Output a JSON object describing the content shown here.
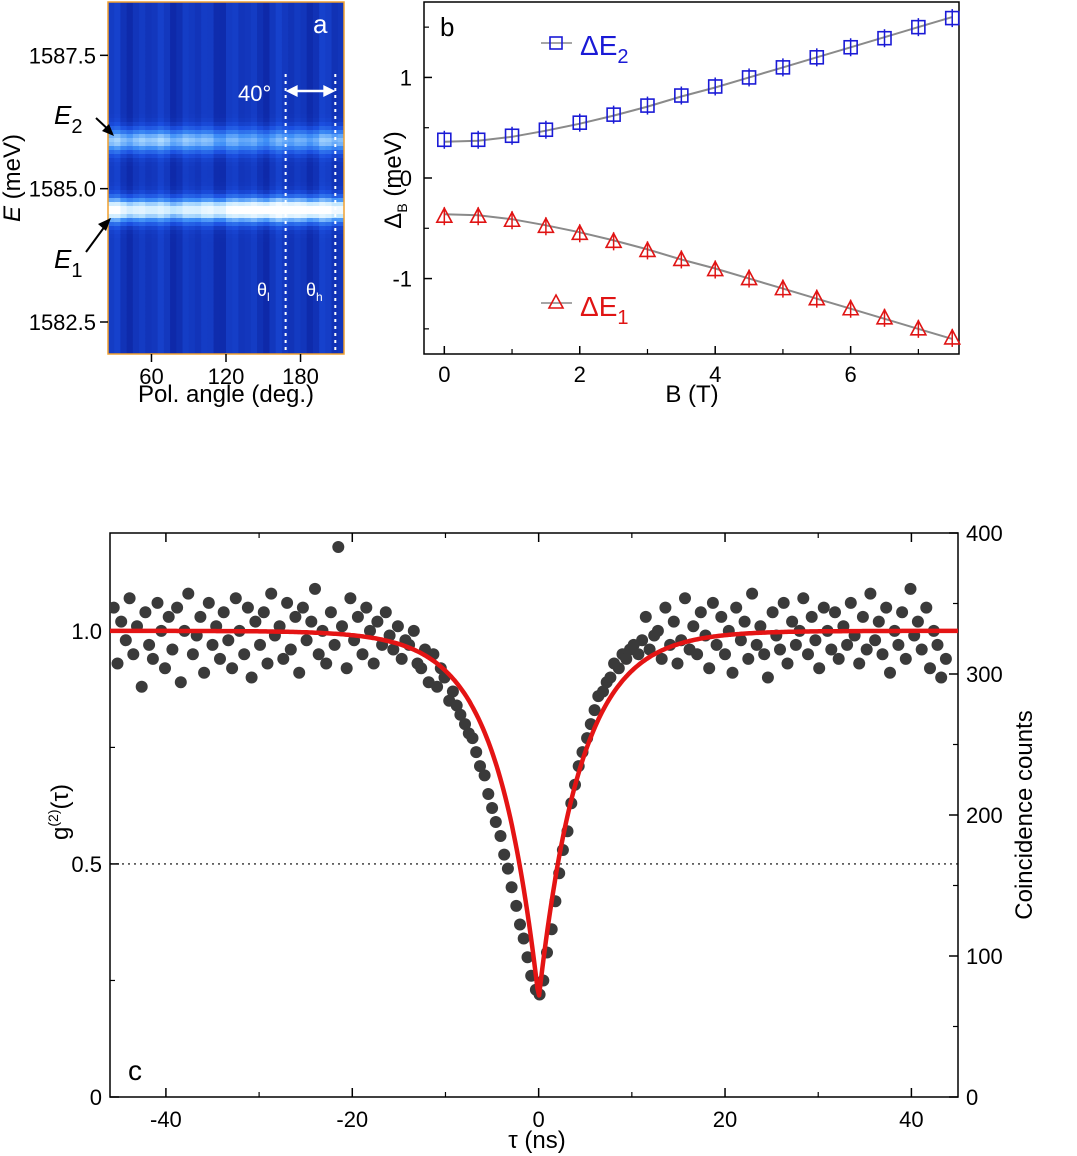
{
  "chart_data": [
    {
      "panel": "a",
      "type": "heatmap",
      "panel_label": "a",
      "xlabel": "Pol. angle (deg.)",
      "ylabel": "E (meV)",
      "ylabel_italic_part": "E",
      "ylabel_rest": " (meV)",
      "x_ticks": [
        60,
        120,
        180
      ],
      "y_ticks": [
        "1587.5",
        "1585.0",
        "1582.5"
      ],
      "xlim": [
        25,
        215
      ],
      "ylim": [
        1581.9,
        1588.5
      ],
      "colormap": [
        "#0a1f9a",
        "#1b4fe0",
        "#3f8ff7",
        "#bfe6ff",
        "#ffffff"
      ],
      "bands": [
        {
          "name": "E1",
          "energy": 1584.6,
          "peak_angle": 165,
          "peak_intensity": 1.0,
          "min_intensity": 0.72
        },
        {
          "name": "E2",
          "energy": 1585.9,
          "peak_angle": 60,
          "peak_intensity": 0.55,
          "min_intensity": 0.45
        }
      ],
      "annotations": {
        "e2_label": "E",
        "e2_sub": "2",
        "e1_label": "E",
        "e1_sub": "1",
        "angle_span": "40°",
        "theta_l": "θ",
        "theta_l_sub": "l",
        "theta_h": "θ",
        "theta_h_sub": "h",
        "theta_l_angle": 168,
        "theta_h_angle": 208
      }
    },
    {
      "panel": "b",
      "type": "scatter",
      "panel_label": "b",
      "xlabel": "B (T)",
      "ylabel_main": "Δ",
      "ylabel_sub": "B",
      "ylabel_rest": " (meV)",
      "xlim": [
        -0.3,
        7.6
      ],
      "ylim": [
        -1.75,
        1.75
      ],
      "x_ticks": [
        0,
        2,
        4,
        6
      ],
      "y_ticks": [
        -1,
        0,
        1
      ],
      "y_tick_labels": [
        "-1",
        "0",
        "1"
      ],
      "series": [
        {
          "name": "ΔE2",
          "legend_main": "ΔE",
          "legend_sub": "2",
          "marker": "square",
          "color": "#1a1ad6",
          "x": [
            0,
            0.5,
            1,
            1.5,
            2,
            2.5,
            3,
            3.5,
            4,
            4.5,
            5,
            5.5,
            6,
            6.5,
            7,
            7.5
          ],
          "y": [
            0.38,
            0.38,
            0.42,
            0.48,
            0.55,
            0.63,
            0.72,
            0.82,
            0.91,
            1.0,
            1.1,
            1.2,
            1.3,
            1.39,
            1.5,
            1.59
          ],
          "fit": [
            0.36,
            0.37,
            0.41,
            0.47,
            0.54,
            0.62,
            0.71,
            0.81,
            0.9,
            1.0,
            1.1,
            1.2,
            1.3,
            1.4,
            1.5,
            1.6
          ]
        },
        {
          "name": "ΔE1",
          "legend_main": "ΔE",
          "legend_sub": "1",
          "marker": "triangle",
          "color": "#e01414",
          "x": [
            0,
            0.5,
            1,
            1.5,
            2,
            2.5,
            3,
            3.5,
            4,
            4.5,
            5,
            5.5,
            6,
            6.5,
            7,
            7.5
          ],
          "y": [
            -0.38,
            -0.38,
            -0.42,
            -0.48,
            -0.55,
            -0.63,
            -0.72,
            -0.81,
            -0.91,
            -1.0,
            -1.1,
            -1.2,
            -1.3,
            -1.39,
            -1.5,
            -1.59
          ],
          "fit": [
            -0.36,
            -0.37,
            -0.41,
            -0.47,
            -0.54,
            -0.62,
            -0.71,
            -0.81,
            -0.9,
            -1.0,
            -1.1,
            -1.2,
            -1.3,
            -1.4,
            -1.5,
            -1.6
          ]
        }
      ]
    },
    {
      "panel": "c",
      "type": "scatter",
      "panel_label": "c",
      "xlabel": "τ (ns)",
      "ylabel_left_main": "g",
      "ylabel_left_sup": "(2)",
      "ylabel_left_rest": "(τ)",
      "ylabel_right": "Coincidence counts",
      "xlim": [
        -46,
        45
      ],
      "ylim_left": [
        0,
        1.21
      ],
      "ylim_right": [
        0,
        400
      ],
      "x_ticks": [
        -40,
        -20,
        0,
        20,
        40
      ],
      "y_ticks_left": [
        0,
        0.5,
        1.0
      ],
      "y_tick_labels_left": [
        "0",
        "0.5",
        "1.0"
      ],
      "y_ticks_right": [
        0,
        100,
        200,
        300,
        400
      ],
      "reference_line": 0.5,
      "fit": {
        "type": "two-sided exponential dip",
        "baseline": 1.0,
        "dip_value": 0.21,
        "tau_ns": 4.5,
        "color": "#e41414"
      },
      "scatter_color": "#3a3a3a",
      "points_x": [
        -45.6,
        -45.2,
        -44.8,
        -44.3,
        -43.9,
        -43.5,
        -43.1,
        -42.6,
        -42.2,
        -41.8,
        -41.4,
        -40.9,
        -40.5,
        -40.1,
        -39.7,
        -39.3,
        -38.8,
        -38.4,
        -38.0,
        -37.6,
        -37.1,
        -36.7,
        -36.3,
        -35.9,
        -35.4,
        -35.0,
        -34.6,
        -34.2,
        -33.8,
        -33.3,
        -32.9,
        -32.5,
        -32.1,
        -31.6,
        -31.2,
        -30.8,
        -30.4,
        -29.9,
        -29.5,
        -29.1,
        -28.7,
        -28.3,
        -27.8,
        -27.4,
        -27.0,
        -26.6,
        -26.1,
        -25.7,
        -25.3,
        -24.9,
        -24.4,
        -24.0,
        -23.6,
        -23.2,
        -22.8,
        -22.3,
        -21.9,
        -21.5,
        -21.1,
        -20.6,
        -20.2,
        -19.8,
        -19.4,
        -18.9,
        -18.5,
        -18.1,
        -17.7,
        -17.3,
        -16.8,
        -16.4,
        -16.0,
        -15.6,
        -15.1,
        -14.7,
        -14.3,
        -13.9,
        -13.4,
        -13.0,
        -12.6,
        -12.2,
        -11.8,
        -11.3,
        -10.9,
        -10.5,
        -10.1,
        -9.6,
        -9.2,
        -8.8,
        -8.4,
        -7.9,
        -7.5,
        -7.1,
        -6.7,
        -6.3,
        -5.8,
        -5.4,
        -5.0,
        -4.6,
        -4.1,
        -3.7,
        -3.3,
        -2.9,
        -2.4,
        -2.0,
        -1.6,
        -1.2,
        -0.8,
        -0.3,
        0.1,
        0.5,
        0.9,
        1.4,
        1.8,
        2.2,
        2.6,
        3.1,
        3.5,
        3.9,
        4.3,
        4.7,
        5.2,
        5.6,
        6.0,
        6.4,
        6.9,
        7.3,
        7.7,
        8.1,
        8.6,
        9.0,
        9.4,
        9.8,
        10.2,
        10.7,
        11.1,
        11.5,
        11.9,
        12.4,
        12.8,
        13.2,
        13.6,
        14.1,
        14.5,
        14.9,
        15.3,
        15.7,
        16.2,
        16.6,
        17.0,
        17.4,
        17.9,
        18.3,
        18.7,
        19.1,
        19.6,
        20.0,
        20.4,
        20.8,
        21.2,
        21.7,
        22.1,
        22.5,
        22.9,
        23.4,
        23.8,
        24.2,
        24.6,
        25.1,
        25.5,
        25.9,
        26.3,
        26.7,
        27.2,
        27.6,
        28.0,
        28.4,
        28.9,
        29.3,
        29.7,
        30.1,
        30.6,
        31.0,
        31.4,
        31.8,
        32.2,
        32.7,
        33.1,
        33.5,
        33.9,
        34.4,
        34.8,
        35.2,
        35.6,
        36.1,
        36.5,
        36.9,
        37.3,
        37.7,
        38.2,
        38.6,
        39.0,
        39.4,
        39.9,
        40.3,
        40.7,
        41.1,
        41.6,
        42.0,
        42.4,
        42.8,
        43.2,
        43.7,
        44.1,
        44.5
      ],
      "points_y": [
        1.05,
        0.93,
        1.02,
        0.98,
        1.07,
        0.95,
        1.01,
        0.88,
        1.04,
        0.97,
        0.94,
        1.06,
        1.0,
        0.92,
        1.03,
        0.96,
        1.05,
        0.89,
        1.0,
        1.08,
        0.95,
        0.99,
        1.03,
        0.91,
        1.06,
        0.97,
        1.01,
        0.94,
        1.04,
        0.98,
        0.92,
        1.07,
        1.0,
        0.95,
        1.05,
        0.9,
        1.02,
        0.97,
        1.04,
        0.93,
        1.08,
        0.99,
        1.01,
        0.94,
        1.06,
        0.96,
        1.03,
        0.91,
        1.05,
        0.98,
        1.02,
        1.09,
        0.95,
        1.0,
        0.93,
        1.04,
        0.97,
        1.18,
        1.01,
        0.92,
        1.07,
        0.98,
        1.03,
        0.95,
        1.05,
        1.0,
        0.93,
        1.02,
        0.97,
        1.04,
        0.99,
        0.96,
        1.01,
        0.94,
        0.98,
        0.97,
        1.0,
        0.93,
        0.92,
        0.96,
        0.89,
        0.95,
        0.88,
        0.92,
        0.9,
        0.85,
        0.87,
        0.84,
        0.82,
        0.8,
        0.78,
        0.77,
        0.74,
        0.71,
        0.69,
        0.65,
        0.62,
        0.59,
        0.56,
        0.52,
        0.49,
        0.45,
        0.41,
        0.37,
        0.34,
        0.3,
        0.26,
        0.23,
        0.22,
        0.25,
        0.31,
        0.36,
        0.42,
        0.48,
        0.53,
        0.57,
        0.63,
        0.67,
        0.71,
        0.74,
        0.77,
        0.8,
        0.83,
        0.86,
        0.87,
        0.89,
        0.9,
        0.93,
        0.92,
        0.95,
        0.94,
        0.96,
        0.97,
        0.95,
        0.98,
        1.03,
        0.96,
        0.99,
        1.0,
        0.94,
        1.05,
        0.97,
        1.02,
        0.93,
        0.98,
        1.07,
        0.96,
        1.01,
        0.95,
        1.04,
        0.99,
        0.92,
        1.06,
        0.97,
        1.03,
        0.95,
        1.0,
        0.91,
        1.05,
        0.98,
        1.02,
        0.94,
        1.08,
        0.97,
        1.01,
        0.95,
        0.9,
        1.04,
        0.99,
        0.96,
        1.06,
        0.93,
        1.02,
        0.97,
        1.0,
        1.07,
        0.95,
        1.03,
        0.98,
        0.92,
        1.05,
        1.0,
        0.96,
        1.04,
        0.94,
        1.01,
        0.97,
        1.06,
        0.99,
        0.93,
        1.03,
        0.96,
        1.08,
        0.98,
        1.02,
        0.95,
        1.05,
        0.91,
        1.0,
        0.97,
        1.04,
        0.94,
        1.09,
        0.99,
        1.02,
        0.96,
        1.05,
        0.92,
        1.0,
        0.97,
        0.9,
        0.94
      ]
    }
  ]
}
